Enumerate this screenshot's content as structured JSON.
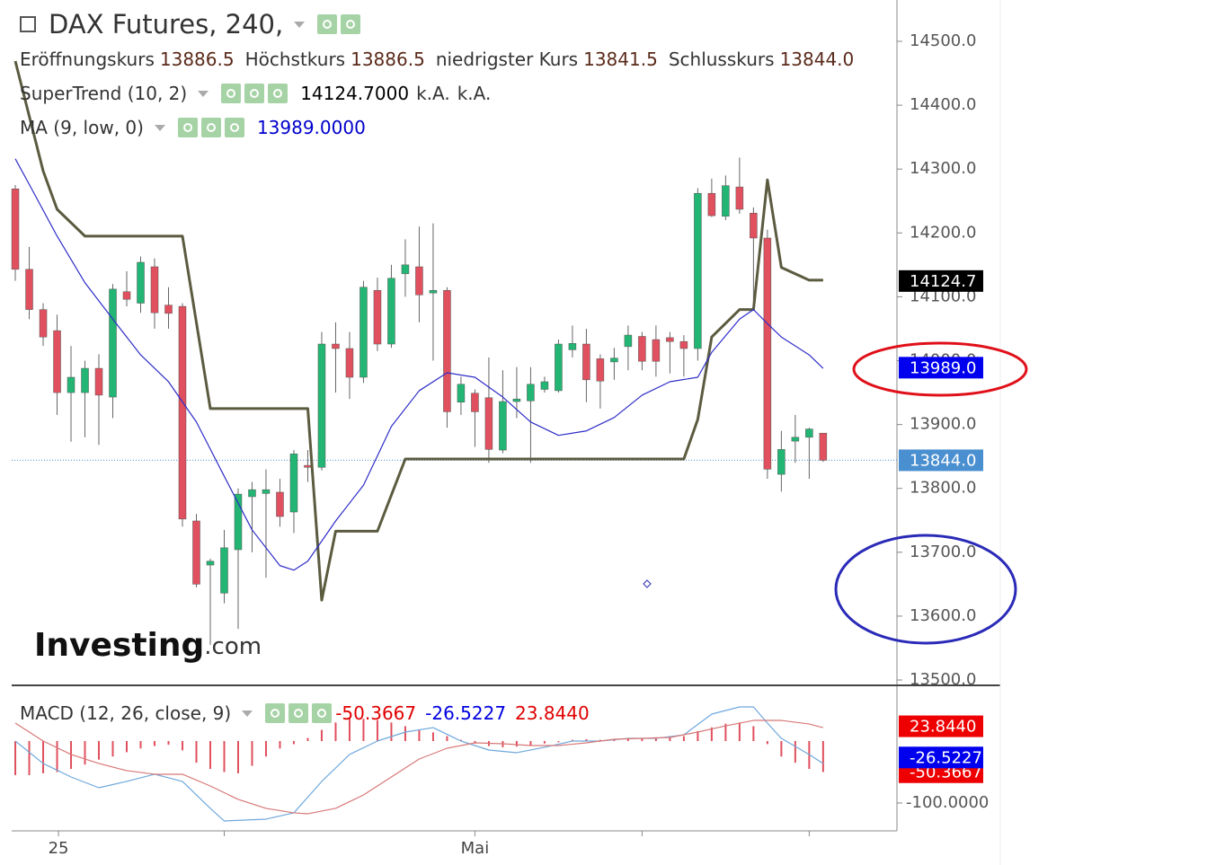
{
  "chart_data": [
    {
      "type": "candlestick",
      "title": "DAX Futures, 240,",
      "ohlc_legend": [
        {
          "name": "Eröffnungskurs",
          "value": 13886.5
        },
        {
          "name": "Höchstkurs",
          "value": 13886.5
        },
        {
          "name": "niedrigster Kurs",
          "value": 13841.5
        },
        {
          "name": "Schlusskurs",
          "value": 13844,
          "value_label": "13844.0"
        }
      ],
      "up_color": "#22b573",
      "down_color": "#e0505e",
      "open": [
        14269,
        14143,
        14080,
        14047,
        13950,
        13950,
        13988,
        13943,
        14108,
        14090,
        14147,
        14087,
        14085,
        13749,
        13680,
        13636,
        13704,
        13787,
        13792,
        13794,
        13763,
        13836,
        13833,
        14026,
        14019,
        13974,
        14110,
        14026,
        14136,
        14147,
        14106,
        14110,
        13935,
        13949,
        13942,
        13860,
        13936,
        13937,
        13955,
        13953,
        14017,
        14026,
        14003,
        13998,
        14022,
        14038,
        14033,
        14036,
        14030,
        14019,
        14262,
        14226,
        14272,
        14231,
        14192,
        13822,
        13874,
        13880,
        13886.5
      ],
      "high": [
        14275,
        14178,
        14090,
        14072,
        14023,
        14000,
        14010,
        14120,
        14140,
        14163,
        14160,
        14115,
        14090,
        13760,
        13690,
        13735,
        13800,
        13810,
        13830,
        13815,
        13860,
        13860,
        14045,
        14060,
        14045,
        14125,
        14130,
        14150,
        14190,
        14210,
        14215,
        14115,
        13975,
        13955,
        14005,
        13985,
        13990,
        13990,
        13975,
        14033,
        14055,
        14050,
        14010,
        14020,
        14055,
        14045,
        14055,
        14045,
        14040,
        14270,
        14285,
        14290,
        14318,
        14240,
        14205,
        13890,
        13915,
        13895,
        13886.5
      ],
      "low": [
        14125,
        14065,
        14023,
        13915,
        13873,
        13880,
        13868,
        13910,
        14085,
        14075,
        14050,
        14050,
        13740,
        13645,
        13555,
        13620,
        13580,
        13700,
        13660,
        13740,
        13730,
        13810,
        13828,
        13950,
        13940,
        13965,
        14015,
        14020,
        14100,
        14060,
        14000,
        13895,
        13915,
        13865,
        13840,
        13855,
        13910,
        13840,
        13950,
        13950,
        14005,
        13935,
        13925,
        13970,
        13985,
        13985,
        13975,
        13980,
        13975,
        14000,
        14225,
        14220,
        14230,
        14085,
        13815,
        13795,
        13840,
        13815,
        13841.5
      ],
      "close": [
        14143,
        14080,
        14037,
        13950,
        13974,
        13988,
        13946,
        14112,
        14096,
        14154,
        14075,
        14074,
        13752,
        13650,
        13686,
        13707,
        13791,
        13798,
        13798,
        13756,
        13854,
        13833,
        14026,
        14019,
        13974,
        14115,
        14026,
        14129,
        14150,
        14103,
        14110,
        13920,
        13963,
        13920,
        13861,
        13936,
        13940,
        13963,
        13967,
        14026,
        14027,
        13970,
        13968,
        14004,
        14040,
        13999,
        13999,
        14030,
        14019,
        14262,
        14227,
        14274,
        14237,
        14192,
        13830,
        13861,
        13880,
        13893,
        13844
      ],
      "series": [
        {
          "name": "SuperTrend (10, 2)",
          "color": "#5b5b40",
          "box_color": "#000000",
          "x": [
            0,
            2,
            3,
            5,
            12,
            14,
            21,
            22,
            23,
            26,
            28,
            48,
            49,
            50,
            52,
            53,
            54,
            55,
            57,
            58
          ],
          "values": [
            14469,
            14297,
            14237,
            14195,
            14195,
            13925,
            13925,
            13625,
            13733,
            13733,
            13846,
            13846,
            13908,
            14037,
            14080,
            14080,
            14283,
            14146,
            14126,
            14126
          ],
          "last": 14124.7,
          "last_label": "14124.7000",
          "extra": [
            "k.A.",
            "k.A."
          ],
          "axis_label": "14124.7"
        },
        {
          "name": "MA (9, low, 0)",
          "color": "#2d2dc8",
          "box_color": "#0000ee",
          "x": [
            0,
            1,
            3,
            5,
            7,
            9,
            11,
            13,
            15,
            17,
            19,
            20,
            21,
            23,
            25,
            27,
            29,
            31,
            33,
            35,
            37,
            39,
            41,
            43,
            45,
            47,
            49,
            50,
            52,
            53,
            54,
            55,
            57,
            58
          ],
          "values": [
            14316,
            14276,
            14195,
            14122,
            14065,
            14009,
            13967,
            13904,
            13819,
            13735,
            13679,
            13672,
            13686,
            13749,
            13805,
            13897,
            13953,
            13981,
            13974,
            13943,
            13904,
            13883,
            13890,
            13911,
            13946,
            13967,
            13974,
            14013,
            14065,
            14080,
            14058,
            14037,
            14009,
            13988
          ],
          "last": 13989,
          "last_label": "13989.0000",
          "axis_label": "13989.0"
        }
      ],
      "price_line": {
        "value": 13844,
        "label": "13844.0",
        "color": "#4a8fd0"
      },
      "xlim": [
        -0.26,
        63.3
      ],
      "ylim": [
        13491.6,
        14564.7
      ],
      "yticks": [
        {
          "value": 14500,
          "label": "14500.0"
        },
        {
          "value": 14400,
          "label": "14400.0"
        },
        {
          "value": 14300,
          "label": "14300.0"
        },
        {
          "value": 14200,
          "label": "14200.0"
        },
        {
          "value": 14100,
          "label": "14100.0"
        },
        {
          "value": 14000,
          "label": "14000.0"
        },
        {
          "value": 13900,
          "label": "13900.0"
        },
        {
          "value": 13800,
          "label": "13800.0"
        },
        {
          "value": 13700,
          "label": "13700.0"
        },
        {
          "value": 13600,
          "label": "13600.0"
        },
        {
          "value": 13500,
          "label": "13500.0"
        }
      ],
      "watermark": "Investing",
      "watermark_suffix": ".com"
    },
    {
      "type": "macd",
      "name": "MACD (12, 26, close, 9)",
      "header_values": [
        {
          "value": -50.3667,
          "color": "#e00000"
        },
        {
          "value": -26.5227,
          "color": "#0000e0"
        },
        {
          "value": 23.844,
          "label": "23.8440",
          "color": "#e00000"
        }
      ],
      "histogram": {
        "color": "#e0505e",
        "values": [
          -55,
          -55,
          -52,
          -50,
          -45,
          -38,
          -30,
          -25,
          -18,
          -12,
          -8,
          -6,
          -15,
          -35,
          -45,
          -50,
          -52,
          -40,
          -25,
          -12,
          -5,
          5,
          18,
          30,
          36,
          36,
          34,
          30,
          24,
          18,
          14,
          8,
          2,
          -4,
          -8,
          -10,
          -9,
          -7,
          -4,
          -2,
          2,
          3,
          2,
          3,
          5,
          5,
          6,
          6,
          8,
          16,
          22,
          28,
          30,
          24,
          -5,
          -25,
          -35,
          -45,
          -50
        ]
      },
      "series": [
        {
          "color": "#6fa8dc",
          "x": [
            0,
            2,
            4,
            6,
            8,
            10,
            12,
            14,
            15,
            18,
            20,
            22,
            24,
            26,
            28,
            30,
            32,
            34,
            36,
            38,
            40,
            42,
            44,
            46,
            48,
            50,
            52,
            53,
            54,
            55,
            57,
            58
          ],
          "values": [
            0,
            -36.2,
            -58,
            -75.4,
            -65.2,
            -53.6,
            -65.2,
            -108.7,
            -129,
            -126.1,
            -115.9,
            -65.2,
            -21.7,
            0,
            14.5,
            21.7,
            0,
            -14.5,
            -18.8,
            -10.1,
            0,
            0,
            4.3,
            4.3,
            10.1,
            43.5,
            55.1,
            55.1,
            29,
            4.3,
            -21.7,
            -36.2
          ]
        },
        {
          "color": "#d87878",
          "x": [
            0,
            2,
            4,
            6,
            8,
            10,
            12,
            14,
            16,
            18,
            20,
            21,
            23,
            25,
            27,
            29,
            31,
            33,
            35,
            37,
            39,
            41,
            43,
            45,
            47,
            49,
            51,
            53,
            55,
            57,
            58
          ],
          "values": [
            29,
            0,
            -21.7,
            -36.2,
            -47.8,
            -53.6,
            -53.6,
            -72.5,
            -94.2,
            -108.7,
            -115.9,
            -117.4,
            -108.7,
            -87,
            -58,
            -29,
            -11.6,
            -2.9,
            -4.3,
            -7.2,
            -7.2,
            -2.9,
            2.9,
            4.3,
            5.8,
            14.5,
            24.6,
            33.3,
            33.3,
            27.5,
            21.7
          ]
        }
      ],
      "xlim": [
        -0.26,
        63.3
      ],
      "ylim": [
        -145,
        87
      ],
      "yticks": [
        {
          "value": -100,
          "label": "-100.0000"
        }
      ],
      "xticks": [
        {
          "value": 3.1,
          "label": "25"
        },
        {
          "value": 15,
          "label": null
        },
        {
          "value": 33,
          "label": "Mai"
        },
        {
          "value": 45,
          "label": null
        },
        {
          "value": 57,
          "label": null
        }
      ]
    }
  ]
}
